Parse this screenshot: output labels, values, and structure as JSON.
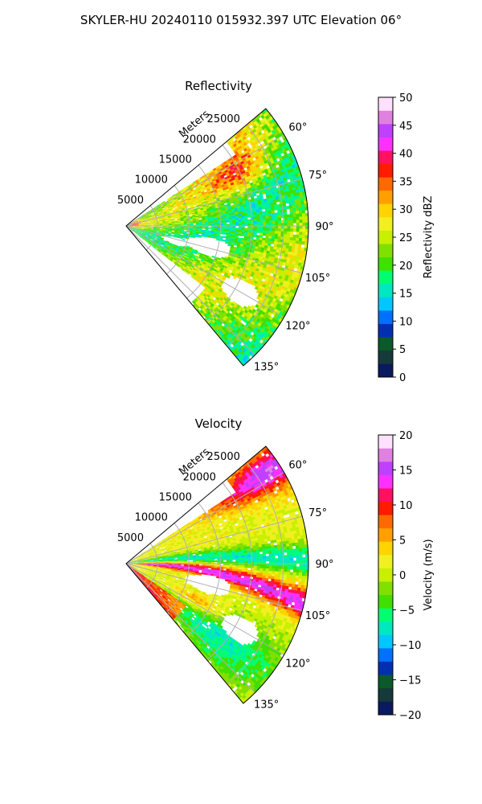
{
  "figure_title": "SKYLER-HU  20240110  015932.397 UTC Elevation 06°",
  "chart_data": [
    {
      "type": "heatmap",
      "subtype": "polar-sector (PPI)",
      "title": "Reflectivity",
      "radial_axis_label": "Meters",
      "radial_ticks": [
        5000,
        10000,
        15000,
        20000,
        25000
      ],
      "radial_tick_labels": [
        "5000",
        "10000",
        "15000",
        "20000",
        "25000"
      ],
      "rmax": 29000,
      "azimuth_range_deg": [
        50,
        140
      ],
      "azimuth_ticks_deg": [
        60,
        75,
        90,
        105,
        120,
        135
      ],
      "azimuth_tick_labels": [
        "60°",
        "75°",
        "90°",
        "105°",
        "120°",
        "135°"
      ],
      "grid": true,
      "colorbar": {
        "label": "Reflectivity dBZ",
        "min": 0,
        "max": 50,
        "ticks": [
          0,
          5,
          10,
          15,
          20,
          25,
          30,
          35,
          40,
          45,
          50
        ],
        "tick_labels": [
          "0",
          "5",
          "10",
          "15",
          "20",
          "25",
          "30",
          "35",
          "40",
          "45",
          "50"
        ],
        "colors": [
          "#0a1a60",
          "#163a3a",
          "#0a5a2a",
          "#0030b0",
          "#0070ff",
          "#00c8ff",
          "#00e8c0",
          "#00ff70",
          "#40e000",
          "#80e000",
          "#c8f000",
          "#f0f020",
          "#ffd400",
          "#ffa000",
          "#ff6a00",
          "#ff1a00",
          "#ff1060",
          "#ff30ff",
          "#c040ff",
          "#e080e0",
          "#ffe0ff"
        ]
      },
      "field_description": "mostly 20–30 dBZ (green/yellow), cores 35–40 dBZ near 60–75° at ~20000 m; clear gaps (no data) near 100–125°"
    },
    {
      "type": "heatmap",
      "subtype": "polar-sector (PPI)",
      "title": "Velocity",
      "radial_axis_label": "Meters",
      "radial_ticks": [
        5000,
        10000,
        15000,
        20000,
        25000
      ],
      "radial_tick_labels": [
        "5000",
        "10000",
        "15000",
        "20000",
        "25000"
      ],
      "rmax": 29000,
      "azimuth_range_deg": [
        50,
        140
      ],
      "azimuth_ticks_deg": [
        60,
        75,
        90,
        105,
        120,
        135
      ],
      "azimuth_tick_labels": [
        "60°",
        "75°",
        "90°",
        "105°",
        "120°",
        "135°"
      ],
      "grid": true,
      "colorbar": {
        "label": "Velocity (m/s)",
        "min": -20,
        "max": 20,
        "ticks": [
          -20,
          -15,
          -10,
          -5,
          0,
          5,
          10,
          15,
          20
        ],
        "tick_labels": [
          "−20",
          "−15",
          "−10",
          "−5",
          "0",
          "5",
          "10",
          "15",
          "20"
        ],
        "colors": [
          "#0a1a60",
          "#163a3a",
          "#0a5a2a",
          "#0030b0",
          "#0070ff",
          "#00c8ff",
          "#00e8c0",
          "#00ff70",
          "#40e000",
          "#80e000",
          "#c8f000",
          "#f0f020",
          "#ffd400",
          "#ffa000",
          "#ff6a00",
          "#ff1a00",
          "#ff1060",
          "#ff30ff",
          "#c040ff",
          "#e080e0",
          "#ffe0ff"
        ]
      },
      "field_description": "positive 10–18 m/s (red/magenta) near 60° and a band from 85° to 105°; negative −10 to −5 m/s (green/cyan) near 90° and 120–140°"
    }
  ]
}
